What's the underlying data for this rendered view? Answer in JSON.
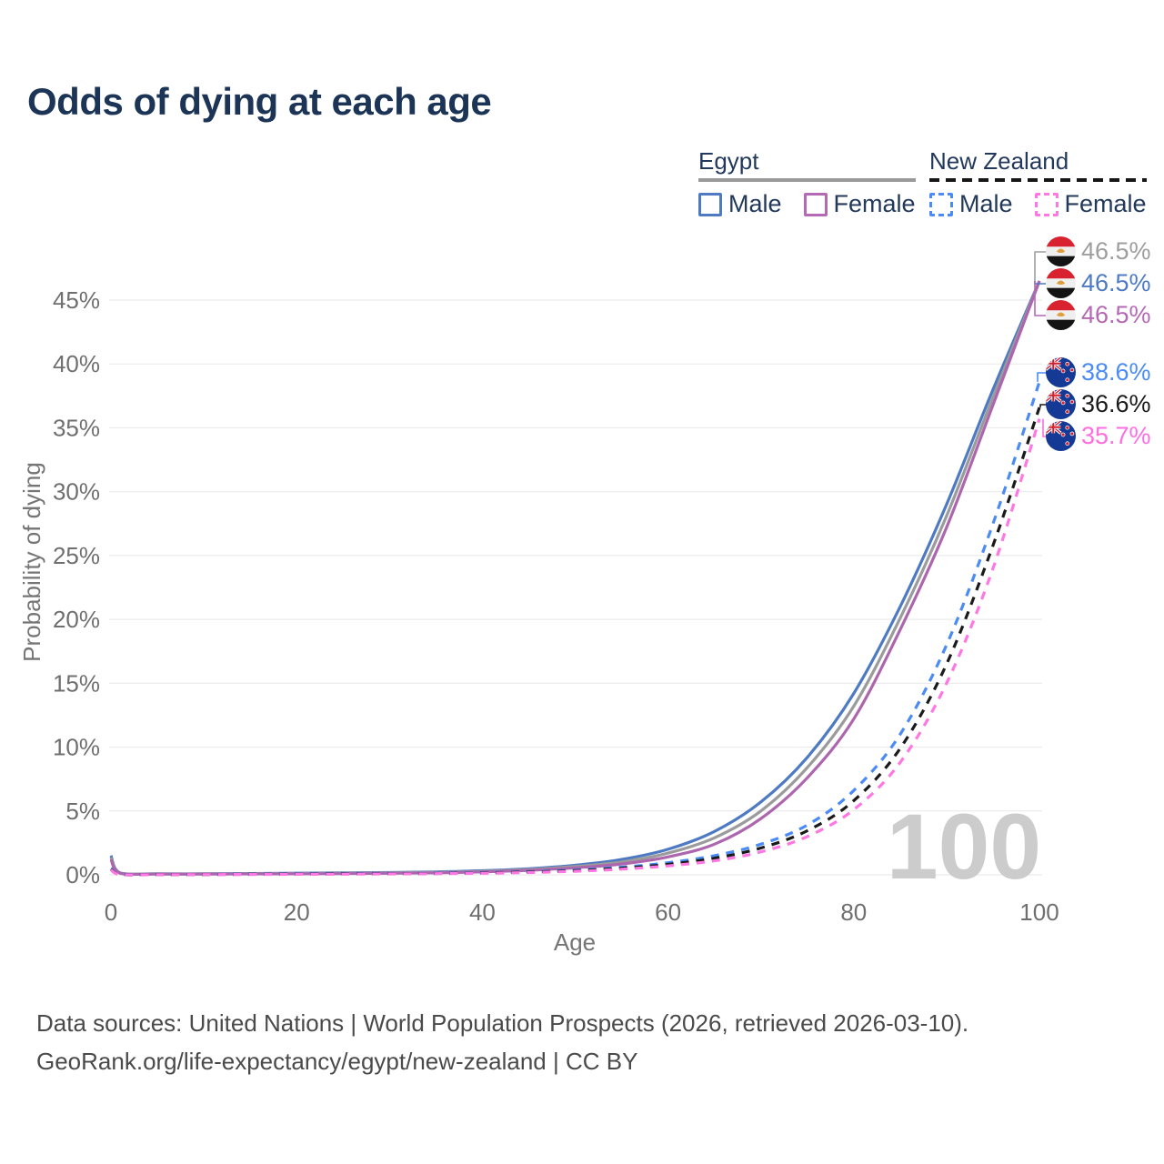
{
  "page": {
    "title": "Odds of dying at each age"
  },
  "legend": {
    "groups": [
      {
        "label": "Egypt",
        "style": "solid",
        "underline_color": "#9a9a9a",
        "items": [
          {
            "label": "Male",
            "color": "#4d7ac2",
            "dash": false
          },
          {
            "label": "Female",
            "color": "#b469b5",
            "dash": false
          }
        ]
      },
      {
        "label": "New Zealand",
        "style": "dashed",
        "underline_color": "#161616",
        "items": [
          {
            "label": "Male",
            "color": "#4b8bf5",
            "dash": true
          },
          {
            "label": "Female",
            "color": "#ff77e2",
            "dash": true
          }
        ]
      }
    ]
  },
  "chart_data": {
    "type": "line",
    "title": "Odds of dying at each age",
    "xlabel": "Age",
    "ylabel": "Probability of dying",
    "xlim": [
      0,
      100
    ],
    "ylim": [
      0,
      48
    ],
    "x_ticks": [
      0,
      20,
      40,
      60,
      80,
      100
    ],
    "y_ticks": [
      "0%",
      "5%",
      "10%",
      "15%",
      "20%",
      "25%",
      "30%",
      "35%",
      "40%",
      "45%"
    ],
    "grid": "horizontal",
    "legend_position": "top-right",
    "watermark": "100",
    "x": [
      0,
      1,
      5,
      10,
      15,
      20,
      25,
      30,
      35,
      40,
      45,
      50,
      55,
      60,
      65,
      70,
      75,
      80,
      85,
      90,
      95,
      100
    ],
    "series": [
      {
        "name": "Egypt Male",
        "country": "Egypt",
        "sex": "male",
        "color": "#4d7ac2",
        "dash": false,
        "values": [
          1.5,
          0.15,
          0.08,
          0.08,
          0.1,
          0.13,
          0.15,
          0.18,
          0.23,
          0.32,
          0.48,
          0.75,
          1.2,
          2.0,
          3.4,
          5.7,
          9.2,
          14.2,
          21.0,
          29.0,
          38.0,
          46.5
        ]
      },
      {
        "name": "Egypt Both sexes",
        "country": "Egypt",
        "sex": "both",
        "color": "#9b9b9b",
        "dash": false,
        "values": [
          1.35,
          0.13,
          0.07,
          0.07,
          0.09,
          0.1,
          0.12,
          0.15,
          0.19,
          0.27,
          0.41,
          0.65,
          1.0,
          1.7,
          2.9,
          5.0,
          8.4,
          13.2,
          20.1,
          28.1,
          37.4,
          46.5
        ]
      },
      {
        "name": "Egypt Female",
        "country": "Egypt",
        "sex": "female",
        "color": "#ad66ae",
        "dash": false,
        "values": [
          1.2,
          0.12,
          0.06,
          0.06,
          0.07,
          0.08,
          0.1,
          0.12,
          0.16,
          0.23,
          0.35,
          0.55,
          0.85,
          1.4,
          2.4,
          4.4,
          7.6,
          12.2,
          19.2,
          27.2,
          36.8,
          46.5
        ]
      },
      {
        "name": "New Zealand Male",
        "country": "New Zealand",
        "sex": "male",
        "color": "#4b8bf5",
        "dash": true,
        "values": [
          0.5,
          0.04,
          0.02,
          0.03,
          0.06,
          0.09,
          0.1,
          0.11,
          0.13,
          0.17,
          0.25,
          0.38,
          0.6,
          0.95,
          1.5,
          2.4,
          3.9,
          6.6,
          11.0,
          18.0,
          27.5,
          38.6
        ]
      },
      {
        "name": "New Zealand Both sexes",
        "country": "New Zealand",
        "sex": "both",
        "color": "#1a1a1a",
        "dash": true,
        "values": [
          0.45,
          0.035,
          0.018,
          0.025,
          0.045,
          0.065,
          0.08,
          0.09,
          0.11,
          0.15,
          0.22,
          0.33,
          0.52,
          0.82,
          1.3,
          2.1,
          3.45,
          5.8,
          9.9,
          16.5,
          25.8,
          36.6
        ]
      },
      {
        "name": "New Zealand Female",
        "country": "New Zealand",
        "sex": "female",
        "color": "#ff77e2",
        "dash": true,
        "values": [
          0.4,
          0.03,
          0.015,
          0.02,
          0.03,
          0.04,
          0.05,
          0.07,
          0.09,
          0.12,
          0.18,
          0.28,
          0.44,
          0.7,
          1.1,
          1.8,
          3.0,
          5.1,
          8.8,
          15.0,
          24.0,
          35.7
        ]
      }
    ],
    "end_labels": [
      {
        "text": "46.5%",
        "value": 46.5,
        "color": "#9e9e9e",
        "flag": "egypt"
      },
      {
        "text": "46.5%",
        "value": 46.5,
        "color": "#4d7ac2",
        "flag": "egypt"
      },
      {
        "text": "46.5%",
        "value": 46.5,
        "color": "#b469b5",
        "flag": "egypt"
      },
      {
        "text": "38.6%",
        "value": 38.6,
        "color": "#4b8bf5",
        "flag": "nz"
      },
      {
        "text": "36.6%",
        "value": 36.6,
        "color": "#1a1a1a",
        "flag": "nz"
      },
      {
        "text": "35.7%",
        "value": 35.7,
        "color": "#ff6ee0",
        "flag": "nz"
      }
    ]
  },
  "footer": {
    "line1": "Data sources: United Nations | World Population Prospects (2026, retrieved 2026-03-10).",
    "line2": "GeoRank.org/life-expectancy/egypt/new-zealand | CC BY"
  }
}
